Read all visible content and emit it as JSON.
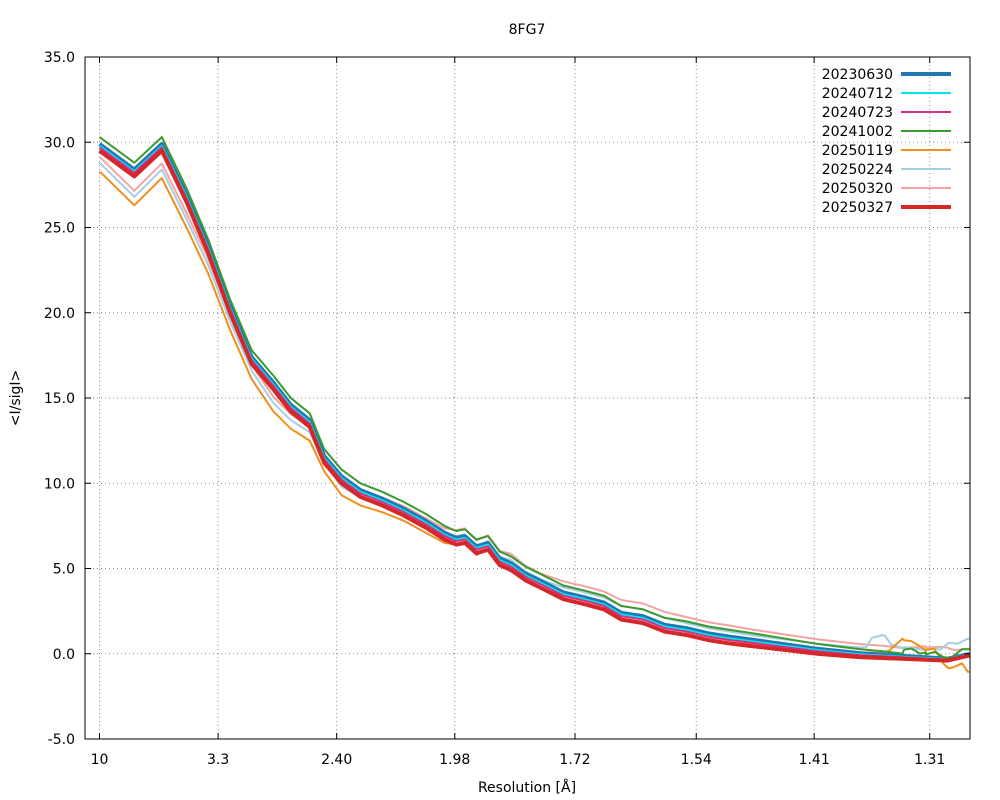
{
  "chart_data": {
    "type": "line",
    "title": "8FG7",
    "xlabel": "Resolution [Å]",
    "ylabel": "<I/sigI>",
    "x_axis_scale": "1/d^2 (labels are resolution in Å)",
    "x_tick_labels": [
      "10",
      "3.3",
      "2.40",
      "1.98",
      "1.72",
      "1.54",
      "1.41",
      "1.31"
    ],
    "y_tick_labels": [
      "-5.0",
      "0.0",
      "5.0",
      "10.0",
      "15.0",
      "20.0",
      "25.0",
      "30.0",
      "35.0"
    ],
    "ylim": [
      -5,
      35
    ],
    "grid": true,
    "legend_position": "top-right",
    "series": [
      {
        "name": "20230630",
        "color": "#1f77b4",
        "width": 4,
        "group": "high",
        "offset": 0.4,
        "dev": []
      },
      {
        "name": "20240712",
        "color": "#00e5e5",
        "width": 2,
        "group": "high",
        "offset": 0.3,
        "dev": []
      },
      {
        "name": "20240723",
        "color": "#d62c8a",
        "width": 2,
        "group": "high",
        "offset": 0.2,
        "dev": []
      },
      {
        "name": "20241002",
        "color": "#3a9a2e",
        "width": 2,
        "group": "high",
        "offset": 0.8,
        "dev": [
          [
            0.564,
            0.15
          ],
          [
            0.57,
            0.45
          ],
          [
            0.576,
            0.2
          ],
          [
            0.58,
            0.15
          ],
          [
            0.586,
            0.3
          ],
          [
            0.592,
            0.05
          ],
          [
            0.596,
            -0.1
          ],
          [
            0.605,
            0.2
          ]
        ]
      },
      {
        "name": "20250119",
        "color": "#f28e1c",
        "width": 2,
        "group": "low",
        "offset": -0.3,
        "dev": [
          [
            0.555,
            0.05
          ],
          [
            0.56,
            0.55
          ],
          [
            0.564,
            0.85
          ],
          [
            0.57,
            0.7
          ],
          [
            0.576,
            0.45
          ],
          [
            0.58,
            0.25
          ],
          [
            0.586,
            0.3
          ],
          [
            0.592,
            -0.5
          ],
          [
            0.596,
            -0.8
          ],
          [
            0.6,
            -0.7
          ],
          [
            0.605,
            -0.6
          ],
          [
            0.609,
            -1.1
          ]
        ]
      },
      {
        "name": "20250224",
        "color": "#a6cee3",
        "width": 2,
        "group": "low",
        "offset": 0.2,
        "dev": [
          [
            0.539,
            0.1
          ],
          [
            0.543,
            0.7
          ],
          [
            0.548,
            0.8
          ],
          [
            0.552,
            0.8
          ],
          [
            0.556,
            0.3
          ],
          [
            0.564,
            0.2
          ],
          [
            0.58,
            0.1
          ],
          [
            0.586,
            0.25
          ],
          [
            0.59,
            0.2
          ],
          [
            0.596,
            0.6
          ],
          [
            0.602,
            0.55
          ],
          [
            0.609,
            0.75
          ]
        ]
      },
      {
        "name": "20250320",
        "color": "#f4a3a3",
        "width": 2,
        "group": "low",
        "offset": 0.55,
        "dev": [
          [
            0.58,
            0.2
          ],
          [
            0.59,
            0.3
          ],
          [
            0.6,
            0.1
          ]
        ]
      },
      {
        "name": "20250327",
        "color": "#d62728",
        "width": 4,
        "group": "high",
        "offset": 0.0,
        "dev": []
      }
    ],
    "base_high": [
      [
        0.01,
        29.5
      ],
      [
        0.034,
        28.0
      ],
      [
        0.053,
        29.5
      ],
      [
        0.07,
        26.5
      ],
      [
        0.085,
        23.5
      ],
      [
        0.1,
        20.0
      ],
      [
        0.115,
        17.0
      ],
      [
        0.13,
        15.5
      ],
      [
        0.142,
        14.2
      ],
      [
        0.155,
        13.3
      ],
      [
        0.165,
        11.2
      ],
      [
        0.177,
        10.0
      ],
      [
        0.19,
        9.2
      ],
      [
        0.205,
        8.7
      ],
      [
        0.22,
        8.1
      ],
      [
        0.235,
        7.4
      ],
      [
        0.248,
        6.7
      ],
      [
        0.256,
        6.4
      ],
      [
        0.262,
        6.5
      ],
      [
        0.27,
        5.9
      ],
      [
        0.278,
        6.1
      ],
      [
        0.286,
        5.2
      ],
      [
        0.294,
        4.9
      ],
      [
        0.304,
        4.3
      ],
      [
        0.316,
        3.8
      ],
      [
        0.33,
        3.2
      ],
      [
        0.345,
        2.9
      ],
      [
        0.358,
        2.6
      ],
      [
        0.37,
        2.0
      ],
      [
        0.385,
        1.8
      ],
      [
        0.4,
        1.3
      ],
      [
        0.415,
        1.1
      ],
      [
        0.43,
        0.8
      ],
      [
        0.445,
        0.6
      ],
      [
        0.46,
        0.45
      ],
      [
        0.475,
        0.3
      ],
      [
        0.49,
        0.15
      ],
      [
        0.505,
        0.0
      ],
      [
        0.52,
        -0.1
      ],
      [
        0.535,
        -0.2
      ],
      [
        0.55,
        -0.25
      ],
      [
        0.565,
        -0.3
      ],
      [
        0.58,
        -0.35
      ],
      [
        0.595,
        -0.4
      ],
      [
        0.61,
        -0.1
      ]
    ],
    "base_low": [
      [
        0.01,
        28.6
      ],
      [
        0.034,
        26.6
      ],
      [
        0.053,
        28.2
      ],
      [
        0.07,
        25.3
      ],
      [
        0.085,
        22.6
      ],
      [
        0.1,
        19.3
      ],
      [
        0.115,
        16.4
      ],
      [
        0.13,
        14.5
      ],
      [
        0.142,
        13.5
      ],
      [
        0.155,
        12.8
      ],
      [
        0.165,
        11.0
      ],
      [
        0.177,
        9.6
      ],
      [
        0.19,
        9.0
      ],
      [
        0.205,
        8.6
      ],
      [
        0.22,
        8.1
      ],
      [
        0.235,
        7.4
      ],
      [
        0.248,
        6.8
      ],
      [
        0.256,
        6.7
      ],
      [
        0.262,
        6.8
      ],
      [
        0.27,
        6.1
      ],
      [
        0.278,
        6.4
      ],
      [
        0.286,
        5.5
      ],
      [
        0.294,
        5.3
      ],
      [
        0.304,
        4.6
      ],
      [
        0.316,
        4.1
      ],
      [
        0.33,
        3.7
      ],
      [
        0.345,
        3.4
      ],
      [
        0.358,
        3.1
      ],
      [
        0.37,
        2.6
      ],
      [
        0.385,
        2.4
      ],
      [
        0.4,
        1.9
      ],
      [
        0.415,
        1.6
      ],
      [
        0.43,
        1.3
      ],
      [
        0.445,
        1.1
      ],
      [
        0.46,
        0.9
      ],
      [
        0.475,
        0.75
      ],
      [
        0.49,
        0.6
      ],
      [
        0.505,
        0.45
      ],
      [
        0.52,
        0.35
      ],
      [
        0.535,
        0.25
      ],
      [
        0.55,
        0.2
      ],
      [
        0.565,
        0.1
      ],
      [
        0.58,
        0.05
      ],
      [
        0.595,
        0.0
      ],
      [
        0.61,
        0.1
      ]
    ]
  }
}
